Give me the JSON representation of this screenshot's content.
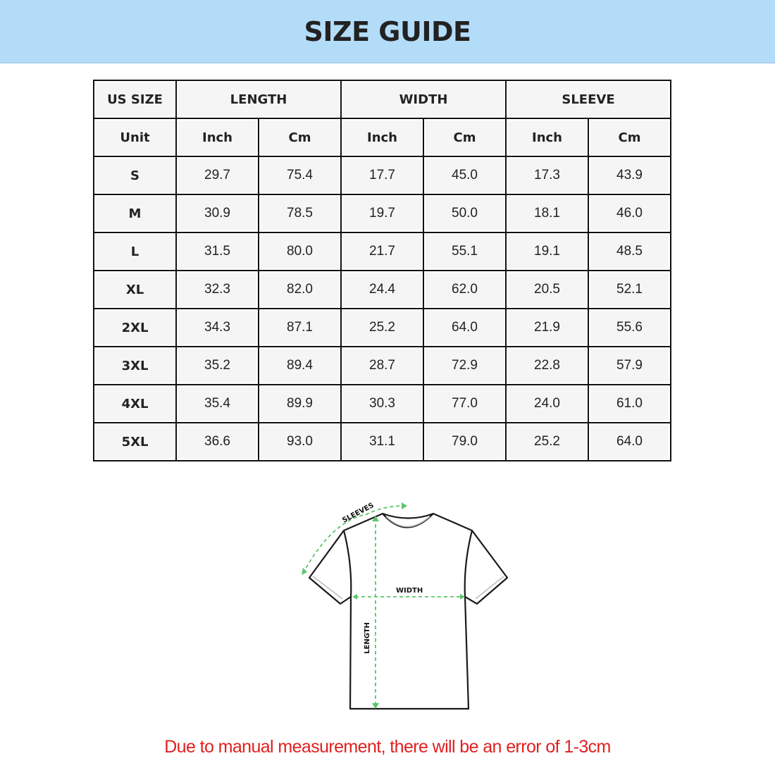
{
  "title": "SIZE GUIDE",
  "table": {
    "groups": [
      "US SIZE",
      "LENGTH",
      "WIDTH",
      "SLEEVE"
    ],
    "units": [
      "Unit",
      "Inch",
      "Cm",
      "Inch",
      "Cm",
      "Inch",
      "Cm"
    ],
    "rows": [
      [
        "S",
        "29.7",
        "75.4",
        "17.7",
        "45.0",
        "17.3",
        "43.9"
      ],
      [
        "M",
        "30.9",
        "78.5",
        "19.7",
        "50.0",
        "18.1",
        "46.0"
      ],
      [
        "L",
        "31.5",
        "80.0",
        "21.7",
        "55.1",
        "19.1",
        "48.5"
      ],
      [
        "XL",
        "32.3",
        "82.0",
        "24.4",
        "62.0",
        "20.5",
        "52.1"
      ],
      [
        "2XL",
        "34.3",
        "87.1",
        "25.2",
        "64.0",
        "21.9",
        "55.6"
      ],
      [
        "3XL",
        "35.2",
        "89.4",
        "28.7",
        "72.9",
        "22.8",
        "57.9"
      ],
      [
        "4XL",
        "35.4",
        "89.9",
        "30.3",
        "77.0",
        "24.0",
        "61.0"
      ],
      [
        "5XL",
        "36.6",
        "93.0",
        "31.1",
        "79.0",
        "25.2",
        "64.0"
      ]
    ]
  },
  "diagram": {
    "sleeves": "SLEEVES",
    "width": "WIDTH",
    "length": "LENGTH"
  },
  "note": "Due to manual measurement, there will be an error of 1-3cm",
  "colors": {
    "header": "#b3dcf9",
    "note": "#e0201f",
    "arrows": "#5cc46a"
  }
}
